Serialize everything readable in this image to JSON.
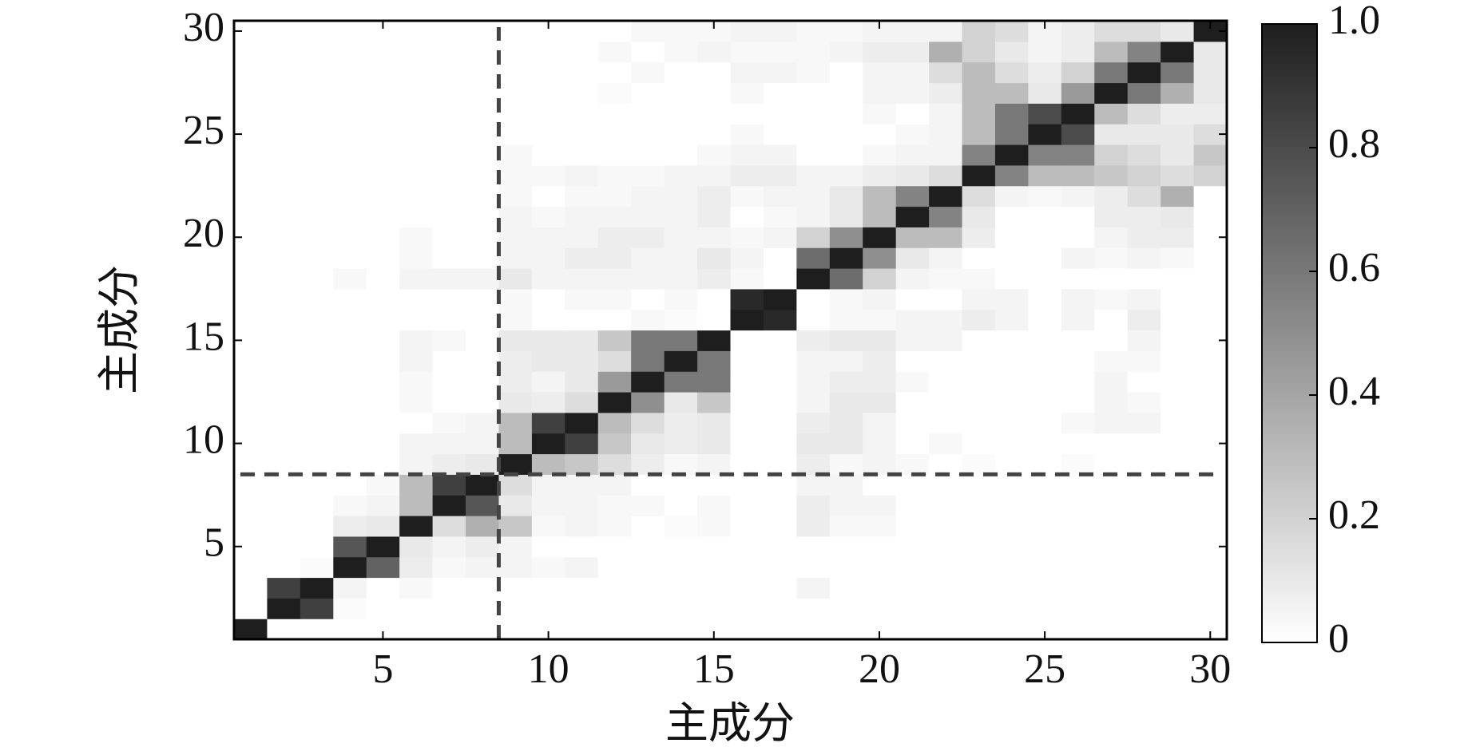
{
  "chart_data": {
    "type": "heatmap",
    "x_label": "主成分",
    "y_label": "主成分",
    "x": [
      1,
      2,
      3,
      4,
      5,
      6,
      7,
      8,
      9,
      10,
      11,
      12,
      13,
      14,
      15,
      16,
      17,
      18,
      19,
      20,
      21,
      22,
      23,
      24,
      25,
      26,
      27,
      28,
      29,
      30
    ],
    "y": [
      1,
      2,
      3,
      4,
      5,
      6,
      7,
      8,
      9,
      10,
      11,
      12,
      13,
      14,
      15,
      16,
      17,
      18,
      19,
      20,
      21,
      22,
      23,
      24,
      25,
      26,
      27,
      28,
      29,
      30
    ],
    "xlim": [
      0.5,
      30.5
    ],
    "ylim": [
      0.5,
      30.5
    ],
    "xticks": [
      5,
      10,
      15,
      20,
      25,
      30
    ],
    "yticks": [
      5,
      10,
      15,
      20,
      25,
      30
    ],
    "vline": 8.5,
    "hline": 8.5,
    "colorbar": {
      "clim": [
        0,
        1
      ],
      "ticks": [
        0,
        0.2,
        0.4,
        0.6,
        0.8,
        {
          "value": 1,
          "label": "1.0"
        }
      ]
    },
    "values": [
      [
        1,
        0,
        0,
        0,
        0,
        0,
        0,
        0,
        0,
        0,
        0,
        0,
        0,
        0,
        0,
        0,
        0,
        0,
        0,
        0,
        0,
        0,
        0,
        0,
        0,
        0,
        0,
        0,
        0,
        0
      ],
      [
        0,
        1,
        0.85,
        0.02,
        0,
        0,
        0,
        0,
        0,
        0,
        0,
        0,
        0,
        0,
        0,
        0,
        0,
        0,
        0,
        0,
        0,
        0,
        0,
        0,
        0,
        0,
        0,
        0,
        0,
        0
      ],
      [
        0,
        0.85,
        1,
        0.05,
        0,
        0.03,
        0,
        0,
        0,
        0,
        0,
        0,
        0,
        0,
        0,
        0,
        0,
        0.05,
        0,
        0,
        0,
        0,
        0,
        0,
        0,
        0,
        0,
        0,
        0,
        0
      ],
      [
        0,
        0,
        0.02,
        1,
        0.7,
        0.08,
        0.03,
        0.05,
        0.05,
        0.03,
        0.05,
        0,
        0,
        0,
        0,
        0,
        0,
        0,
        0,
        0,
        0,
        0,
        0,
        0,
        0,
        0,
        0,
        0,
        0,
        0
      ],
      [
        0,
        0,
        0,
        0.75,
        1,
        0.1,
        0.05,
        0.08,
        0.05,
        0,
        0,
        0,
        0,
        0,
        0,
        0,
        0,
        0,
        0,
        0,
        0,
        0,
        0,
        0,
        0,
        0,
        0,
        0,
        0,
        0
      ],
      [
        0,
        0,
        0,
        0.08,
        0.1,
        1,
        0.15,
        0.35,
        0.25,
        0.03,
        0.05,
        0.03,
        0,
        0.02,
        0.03,
        0,
        0,
        0.08,
        0.03,
        0.03,
        0,
        0,
        0,
        0,
        0,
        0,
        0,
        0,
        0,
        0
      ],
      [
        0,
        0,
        0,
        0.03,
        0.05,
        0.3,
        1,
        0.75,
        0.1,
        0.05,
        0.05,
        0.03,
        0.03,
        0,
        0.03,
        0,
        0,
        0.08,
        0.05,
        0.05,
        0,
        0,
        0,
        0,
        0,
        0,
        0,
        0,
        0,
        0
      ],
      [
        0,
        0,
        0,
        0,
        0.03,
        0.3,
        0.85,
        1,
        0.15,
        0.05,
        0.05,
        0.05,
        0,
        0,
        0,
        0,
        0,
        0.05,
        0.05,
        0,
        0,
        0,
        0,
        0,
        0,
        0,
        0,
        0,
        0,
        0
      ],
      [
        0,
        0,
        0,
        0,
        0,
        0.05,
        0.08,
        0.1,
        1,
        0.3,
        0.25,
        0.15,
        0.08,
        0.03,
        0.05,
        0,
        0,
        0.08,
        0.03,
        0.05,
        0.03,
        0,
        0.02,
        0,
        0,
        0.02,
        0,
        0,
        0,
        0
      ],
      [
        0,
        0,
        0,
        0,
        0,
        0.05,
        0.05,
        0.05,
        0.3,
        1,
        0.85,
        0.25,
        0.1,
        0.08,
        0.1,
        0,
        0,
        0.1,
        0.1,
        0.05,
        0,
        0.03,
        0,
        0,
        0,
        0,
        0,
        0,
        0,
        0
      ],
      [
        0,
        0,
        0,
        0,
        0,
        0,
        0.03,
        0.05,
        0.3,
        0.85,
        1,
        0.3,
        0.15,
        0.08,
        0.1,
        0,
        0,
        0.08,
        0.1,
        0.05,
        0,
        0,
        0,
        0,
        0,
        0.03,
        0.05,
        0.05,
        0,
        0
      ],
      [
        0,
        0,
        0,
        0,
        0,
        0.03,
        0,
        0,
        0.1,
        0.08,
        0.15,
        1,
        0.5,
        0.1,
        0.25,
        0,
        0,
        0.05,
        0.1,
        0.1,
        0,
        0,
        0,
        0,
        0,
        0,
        0.05,
        0.03,
        0,
        0
      ],
      [
        0,
        0,
        0,
        0,
        0,
        0.03,
        0,
        0,
        0.08,
        0.05,
        0.1,
        0.45,
        1,
        0.6,
        0.6,
        0,
        0,
        0.05,
        0.08,
        0.08,
        0.03,
        0,
        0,
        0,
        0,
        0,
        0.05,
        0,
        0,
        0
      ],
      [
        0,
        0,
        0,
        0,
        0,
        0.05,
        0,
        0,
        0.08,
        0.1,
        0.1,
        0.15,
        0.6,
        1,
        0.6,
        0,
        0,
        0.05,
        0.05,
        0.08,
        0,
        0,
        0,
        0,
        0,
        0,
        0.03,
        0.03,
        0,
        0
      ],
      [
        0,
        0,
        0,
        0,
        0,
        0.05,
        0.03,
        0,
        0.1,
        0.1,
        0.1,
        0.25,
        0.6,
        0.6,
        1,
        0,
        0,
        0.08,
        0.1,
        0.1,
        0.05,
        0.05,
        0,
        0,
        0,
        0,
        0,
        0.05,
        0,
        0
      ],
      [
        0,
        0,
        0,
        0,
        0,
        0,
        0,
        0,
        0.03,
        0,
        0,
        0,
        0.03,
        0.02,
        0,
        1,
        0.95,
        0,
        0.03,
        0.03,
        0.05,
        0.05,
        0.08,
        0.05,
        0,
        0.05,
        0,
        0.08,
        0,
        0
      ],
      [
        0,
        0,
        0,
        0,
        0,
        0,
        0,
        0,
        0.03,
        0,
        0.03,
        0.03,
        0,
        0.03,
        0,
        0.95,
        1,
        0,
        0.03,
        0.05,
        0,
        0,
        0.05,
        0.05,
        0,
        0.05,
        0.03,
        0.05,
        0,
        0
      ],
      [
        0,
        0,
        0,
        0.03,
        0,
        0.05,
        0.05,
        0.05,
        0.1,
        0.05,
        0.05,
        0.05,
        0.05,
        0.05,
        0.08,
        0.03,
        0,
        1,
        0.65,
        0.2,
        0.05,
        0.03,
        0.03,
        0,
        0,
        0,
        0,
        0,
        0,
        0
      ],
      [
        0,
        0,
        0,
        0,
        0,
        0.03,
        0,
        0,
        0.05,
        0.05,
        0.08,
        0.08,
        0.05,
        0.05,
        0.1,
        0.05,
        0,
        0.65,
        1,
        0.5,
        0.1,
        0.05,
        0,
        0,
        0,
        0.05,
        0.03,
        0.05,
        0.03,
        0
      ],
      [
        0,
        0,
        0,
        0,
        0,
        0.03,
        0,
        0,
        0.05,
        0.05,
        0.05,
        0.08,
        0.08,
        0.05,
        0.05,
        0.03,
        0.05,
        0.2,
        0.5,
        1,
        0.3,
        0.3,
        0.08,
        0,
        0,
        0,
        0.05,
        0.08,
        0.08,
        0
      ],
      [
        0,
        0,
        0,
        0,
        0,
        0,
        0,
        0,
        0.05,
        0.03,
        0.05,
        0.05,
        0.05,
        0.05,
        0.08,
        0,
        0.03,
        0.05,
        0.1,
        0.3,
        1,
        0.55,
        0.1,
        0,
        0,
        0,
        0.08,
        0.08,
        0.1,
        0
      ],
      [
        0,
        0,
        0,
        0,
        0,
        0,
        0,
        0,
        0.03,
        0,
        0.03,
        0.03,
        0.05,
        0.05,
        0.08,
        0.03,
        0.05,
        0.05,
        0.1,
        0.3,
        0.55,
        1,
        0.15,
        0.05,
        0.03,
        0.05,
        0.08,
        0.15,
        0.35,
        0
      ],
      [
        0,
        0,
        0,
        0,
        0,
        0,
        0,
        0,
        0.03,
        0.03,
        0.05,
        0.03,
        0.03,
        0.05,
        0.05,
        0.08,
        0.08,
        0.05,
        0.05,
        0.08,
        0.1,
        0.15,
        1,
        0.55,
        0.3,
        0.3,
        0.25,
        0.2,
        0.15,
        0.2
      ],
      [
        0,
        0,
        0,
        0,
        0,
        0,
        0,
        0,
        0.03,
        0,
        0,
        0,
        0,
        0,
        0.03,
        0.05,
        0.05,
        0,
        0,
        0.03,
        0.05,
        0.05,
        0.55,
        1,
        0.55,
        0.55,
        0.2,
        0.15,
        0.1,
        0.25
      ],
      [
        0,
        0,
        0,
        0,
        0,
        0,
        0,
        0,
        0,
        0,
        0,
        0,
        0,
        0,
        0,
        0.03,
        0,
        0,
        0,
        0,
        0.03,
        0.05,
        0.3,
        0.6,
        1,
        0.8,
        0.1,
        0.1,
        0.1,
        0.15
      ],
      [
        0,
        0,
        0,
        0,
        0,
        0,
        0,
        0,
        0,
        0,
        0,
        0,
        0,
        0,
        0,
        0,
        0,
        0,
        0,
        0.03,
        0,
        0.05,
        0.3,
        0.6,
        0.8,
        1,
        0.3,
        0.15,
        0.08,
        0.08
      ],
      [
        0,
        0,
        0,
        0,
        0,
        0,
        0,
        0,
        0,
        0,
        0,
        0.02,
        0,
        0,
        0,
        0.03,
        0,
        0,
        0,
        0.05,
        0.05,
        0.08,
        0.3,
        0.3,
        0.1,
        0.45,
        1,
        0.6,
        0.35,
        0.1
      ],
      [
        0,
        0,
        0,
        0,
        0,
        0,
        0,
        0,
        0,
        0,
        0,
        0,
        0.03,
        0,
        0,
        0.05,
        0.05,
        0.03,
        0,
        0.05,
        0.05,
        0.15,
        0.3,
        0.15,
        0.08,
        0.2,
        0.6,
        1,
        0.6,
        0.1
      ],
      [
        0,
        0,
        0,
        0,
        0,
        0,
        0,
        0,
        0,
        0,
        0,
        0.03,
        0,
        0.03,
        0.05,
        0.03,
        0.03,
        0.03,
        0.05,
        0.08,
        0.08,
        0.35,
        0.2,
        0.1,
        0.05,
        0.08,
        0.3,
        0.55,
        1,
        0.1
      ],
      [
        0,
        0,
        0,
        0,
        0,
        0,
        0,
        0,
        0,
        0,
        0,
        0,
        0.03,
        0.03,
        0.03,
        0.05,
        0.05,
        0.03,
        0.03,
        0.05,
        0.05,
        0.05,
        0.2,
        0.15,
        0.05,
        0.08,
        0.15,
        0.15,
        0.1,
        1
      ]
    ]
  }
}
